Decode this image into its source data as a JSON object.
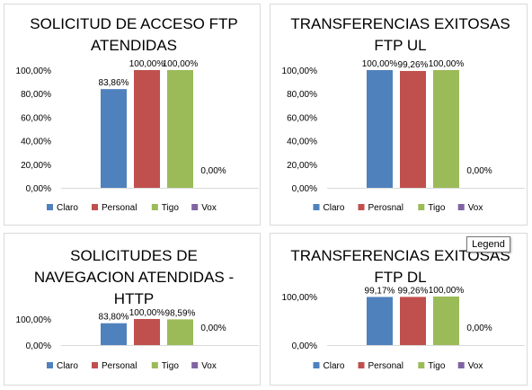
{
  "colors": {
    "Claro": "#4f81bd",
    "Personal": "#c0504d",
    "Tigo": "#9bbb59",
    "Vox": "#8064a2",
    "axis": "#d9d9d9"
  },
  "tooltip": {
    "label": "Legend"
  },
  "chart_data": [
    {
      "type": "bar",
      "title": [
        "SOLICITUD DE ACCESO FTP",
        "ATENDIDAS"
      ],
      "categories": [
        "Claro",
        "Personal",
        "Tigo",
        "Vox"
      ],
      "values": [
        83.86,
        100.0,
        100.0,
        0.0
      ],
      "data_labels": [
        "83,86%",
        "100,00%",
        "100,00%",
        "0,00%"
      ],
      "legend": [
        "Claro",
        "Personal",
        "Tigo",
        "Vox"
      ],
      "legend_position": "bottom",
      "ylim": [
        0,
        100
      ],
      "yticks": [
        0,
        20,
        40,
        60,
        80,
        100
      ],
      "ytick_labels": [
        "0,00%",
        "20,00%",
        "40,00%",
        "60,00%",
        "80,00%",
        "100,00%"
      ],
      "grid": false
    },
    {
      "type": "bar",
      "title": [
        "TRANSFERENCIAS EXITOSAS",
        "FTP UL"
      ],
      "categories": [
        "Claro",
        "Perosnal",
        "Tigo",
        "Vox"
      ],
      "values": [
        100.0,
        99.26,
        100.0,
        0.0
      ],
      "data_labels": [
        "100,00%",
        "99,26%",
        "100,00%",
        "0,00%"
      ],
      "legend": [
        "Claro",
        "Perosnal",
        "Tigo",
        "Vox"
      ],
      "legend_position": "bottom",
      "ylim": [
        0,
        100
      ],
      "yticks": [
        0,
        20,
        40,
        60,
        80,
        100
      ],
      "ytick_labels": [
        "0,00%",
        "20,00%",
        "40,00%",
        "60,00%",
        "80,00%",
        "100,00%"
      ],
      "grid": false
    },
    {
      "type": "bar",
      "title": [
        "SOLICITUDES DE",
        "NAVEGACION ATENDIDAS -",
        "HTTP"
      ],
      "categories": [
        "Claro",
        "Personal",
        "Tigo",
        "Vox"
      ],
      "values": [
        83.8,
        100.0,
        98.59,
        0.0
      ],
      "data_labels": [
        "83,80%",
        "100,00%",
        "98,59%",
        "0,00%"
      ],
      "legend": [
        "Claro",
        "Personal",
        "Tigo",
        "Vox"
      ],
      "legend_position": "bottom",
      "ylim": [
        0,
        100
      ],
      "yticks": [
        0,
        100
      ],
      "ytick_labels": [
        "0,00%",
        "100,00%"
      ],
      "grid": false
    },
    {
      "type": "bar",
      "title": [
        "TRANSFERENCIAS EXITOSAS",
        "FTP DL"
      ],
      "categories": [
        "Claro",
        "Personal",
        "Tigo",
        "Vox"
      ],
      "values": [
        99.17,
        99.26,
        100.0,
        0.0
      ],
      "data_labels": [
        "99,17%",
        "99,26%",
        "100,00%",
        "0,00%"
      ],
      "legend": [
        "Claro",
        "Personal",
        "Tigo",
        "Vox"
      ],
      "legend_position": "bottom",
      "ylim": [
        0,
        100
      ],
      "yticks": [
        0,
        100
      ],
      "ytick_labels": [
        "0,00%",
        "100,00%"
      ],
      "grid": false
    }
  ]
}
